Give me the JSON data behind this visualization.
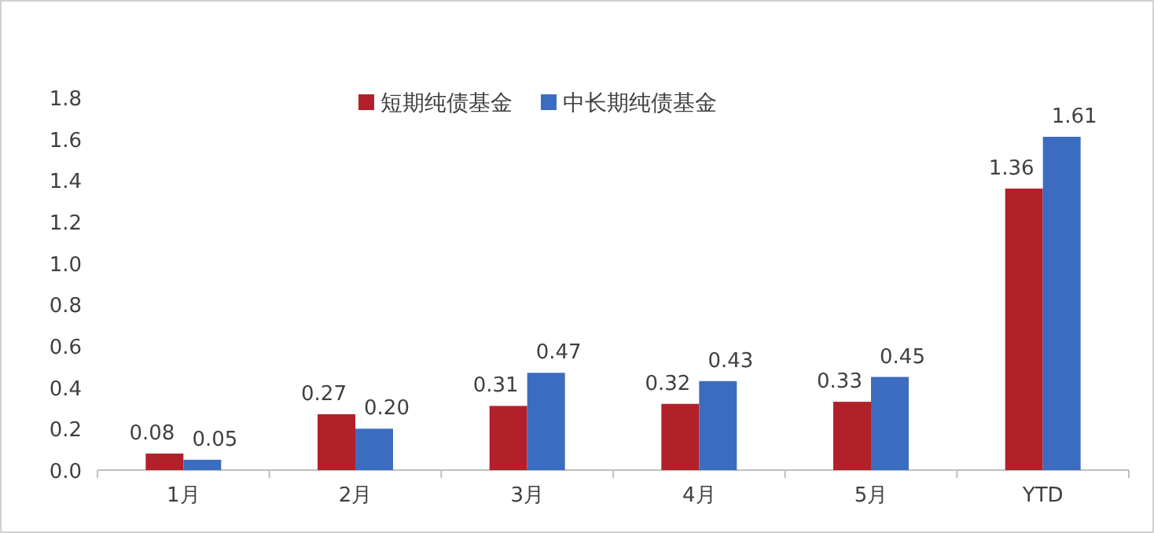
{
  "chart_data": {
    "type": "bar",
    "categories": [
      "1月",
      "2月",
      "3月",
      "4月",
      "5月",
      "YTD"
    ],
    "series": [
      {
        "name": "短期纯债基金",
        "color": "#b2212a",
        "values": [
          0.08,
          0.27,
          0.31,
          0.32,
          0.33,
          1.36
        ],
        "value_labels": [
          "0.08",
          "0.27",
          "0.31",
          "0.32",
          "0.33",
          "1.36"
        ]
      },
      {
        "name": "中长期纯债基金",
        "color": "#3b6cc0",
        "values": [
          0.05,
          0.2,
          0.47,
          0.43,
          0.45,
          1.61
        ],
        "value_labels": [
          "0.05",
          "0.20",
          "0.47",
          "0.43",
          "0.45",
          "1.61"
        ]
      }
    ],
    "ylim": [
      0,
      1.8
    ],
    "yticks": [
      {
        "value": 0,
        "label": "0.0"
      },
      {
        "value": 0.2,
        "label": "0.2"
      },
      {
        "value": 0.4,
        "label": "0.4"
      },
      {
        "value": 0.6,
        "label": "0.6"
      },
      {
        "value": 0.8,
        "label": "0.8"
      },
      {
        "value": 1.0,
        "label": "1.0"
      },
      {
        "value": 1.2,
        "label": "1.2"
      },
      {
        "value": 1.4,
        "label": "1.4"
      },
      {
        "value": 1.6,
        "label": "1.6"
      },
      {
        "value": 1.8,
        "label": "1.8"
      }
    ],
    "legend": "top",
    "grid": false
  }
}
